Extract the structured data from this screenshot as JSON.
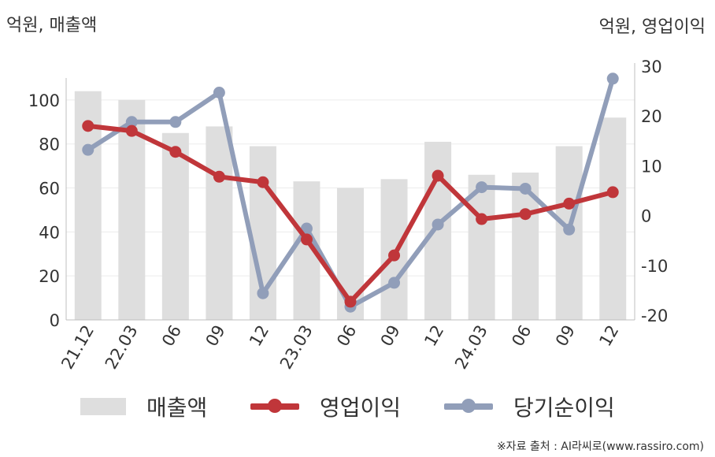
{
  "units": {
    "left": "억원, 매출액",
    "right": "억원, 영업이익"
  },
  "source": "※자료 출처 : AI라씨로(www.rassiro.com)",
  "chart_data": {
    "type": "bar+line",
    "categories": [
      "21.12",
      "22.03",
      "06",
      "09",
      "12",
      "23.03",
      "06",
      "09",
      "12",
      "24.03",
      "06",
      "09",
      "12"
    ],
    "left_axis": {
      "min": 0,
      "max": 110,
      "ticks": [
        0,
        20,
        40,
        60,
        80,
        100
      ]
    },
    "right_axis": {
      "min": -20,
      "max": 30,
      "ticks": [
        -20,
        -10,
        0,
        10,
        20,
        30
      ]
    },
    "grid": true,
    "legend_position": "bottom",
    "series": [
      {
        "name": "매출액",
        "type": "bar",
        "axis": "left",
        "color": "#dedede",
        "values": [
          104,
          100,
          85,
          88,
          79,
          63,
          60,
          64,
          81,
          66,
          67,
          79,
          92
        ]
      },
      {
        "name": "영업이익",
        "type": "line",
        "axis": "right",
        "color": "#c0363a",
        "values": [
          18.0,
          17.0,
          12.8,
          7.8,
          6.7,
          -4.8,
          -17.3,
          -8.0,
          8.0,
          -0.7,
          0.3,
          2.4,
          4.7
        ]
      },
      {
        "name": "당기순이익",
        "type": "line",
        "axis": "right",
        "color": "#919eb9",
        "values": [
          13.2,
          18.8,
          18.8,
          24.7,
          -15.6,
          -2.6,
          -18.3,
          -13.5,
          -1.8,
          5.7,
          5.4,
          -2.8,
          27.5
        ]
      }
    ]
  }
}
